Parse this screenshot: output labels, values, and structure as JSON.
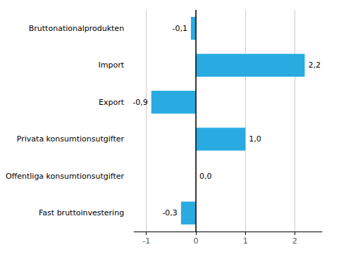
{
  "chart_data": {
    "type": "bar",
    "orientation": "horizontal",
    "categories": [
      "Fast bruttoinvestering",
      "Offentliga konsumtionsutgifter",
      "Privata konsumtionsutgifter",
      "Export",
      "Import",
      "Bruttonationalprodukten"
    ],
    "values": [
      -0.3,
      0.0,
      1.0,
      -0.9,
      2.2,
      -0.1
    ],
    "value_labels": [
      "-0,3",
      "0,0",
      "1,0",
      "-0,9",
      "2,2",
      "-0,1"
    ],
    "data_labels": true,
    "color": "#29ABE2",
    "xlim": [
      -1.25,
      2.55
    ],
    "xticks": [
      -1,
      0,
      1,
      2
    ],
    "grid": true
  }
}
